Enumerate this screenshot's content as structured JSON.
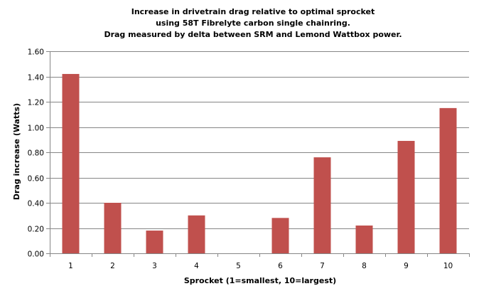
{
  "chart_data": {
    "type": "bar",
    "title": [
      "Increase in drivetrain drag relative to optimal sprocket",
      "using 58T Fibrelyte carbon single chainring.",
      "Drag measured by delta between SRM and Lemond Wattbox power."
    ],
    "xlabel": "Sprocket (1=smallest, 10=largest)",
    "ylabel": "Drag increase (Watts)",
    "categories": [
      "1",
      "2",
      "3",
      "4",
      "5",
      "6",
      "7",
      "8",
      "9",
      "10"
    ],
    "values": [
      1.42,
      0.4,
      0.18,
      0.3,
      0.0,
      0.28,
      0.76,
      0.22,
      0.89,
      1.15
    ],
    "ylim": [
      0,
      1.6
    ],
    "yticks": [
      "0.00",
      "0.20",
      "0.40",
      "0.60",
      "0.80",
      "1.00",
      "1.20",
      "1.40",
      "1.60"
    ],
    "grid": true,
    "legend": "none",
    "bar_color": "#C0504D",
    "grid_color": "#868686"
  }
}
